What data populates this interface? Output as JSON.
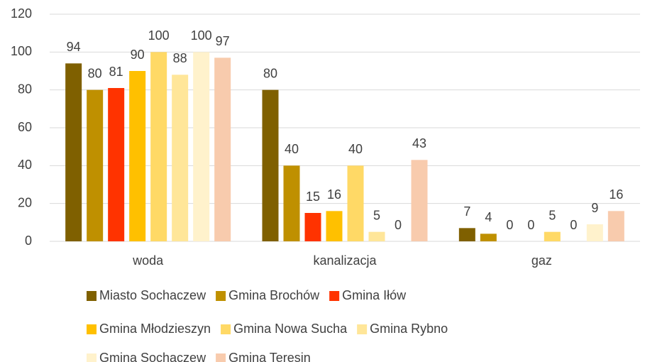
{
  "chart_data": {
    "type": "bar",
    "categories": [
      "woda",
      "kanalizacja",
      "gaz"
    ],
    "series": [
      {
        "name": "Miasto Sochaczew",
        "color": "#7f6000",
        "values": [
          94,
          80,
          7
        ]
      },
      {
        "name": "Gmina Brochów",
        "color": "#bf9000",
        "values": [
          80,
          40,
          4
        ]
      },
      {
        "name": "Gmina Iłów",
        "color": "#ff3300",
        "values": [
          81,
          15,
          0
        ]
      },
      {
        "name": "Gmina Młodzieszyn",
        "color": "#ffc000",
        "values": [
          90,
          16,
          0
        ]
      },
      {
        "name": "Gmina Nowa Sucha",
        "color": "#ffd966",
        "values": [
          100,
          40,
          5
        ]
      },
      {
        "name": "Gmina Rybno",
        "color": "#ffe699",
        "values": [
          88,
          5,
          0
        ]
      },
      {
        "name": "Gmina Sochaczew",
        "color": "#fff2cc",
        "values": [
          100,
          0,
          9
        ]
      },
      {
        "name": "Gmina Teresin",
        "color": "#f8cbad",
        "values": [
          97,
          43,
          16
        ]
      }
    ],
    "ylim": [
      0,
      120
    ],
    "yticks": [
      0,
      20,
      40,
      60,
      80,
      100,
      120
    ],
    "grid": true,
    "legend": "bottom"
  }
}
